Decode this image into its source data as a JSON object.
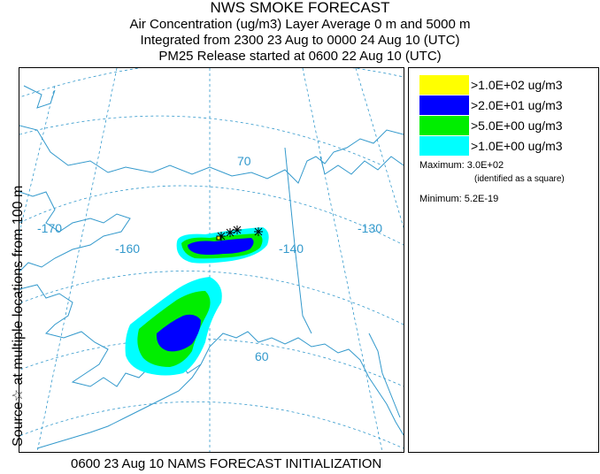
{
  "header": {
    "title": "NWS SMOKE FORECAST",
    "line2": "Air Concentration (ug/m3) Layer Average    0 m and  5000 m",
    "line3": "Integrated from 2300 23 Aug to 0000 24 Aug 10 (UTC)",
    "line4": "PM25 Release started at 0600 22 Aug 10 (UTC)"
  },
  "side_label": "Source☆ at multiple locations   from   100 m",
  "footer": "0600 23 Aug 10 NAMS FORECAST INITIALIZATION",
  "map": {
    "longitude_labels": [
      "-170",
      "-160",
      "-140",
      "-130"
    ],
    "latitude_labels": [
      "70",
      "60"
    ]
  },
  "legend": {
    "items": [
      {
        "label": ">1.0E+02 ug/m3",
        "color": "#ffff00"
      },
      {
        "label": ">2.0E+01 ug/m3",
        "color": "#0000ff"
      },
      {
        "label": ">5.0E+00 ug/m3",
        "color": "#00ee00"
      },
      {
        "label": ">1.0E+00 ug/m3",
        "color": "#00ffff"
      }
    ],
    "maximum": "Maximum: 3.0E+02",
    "maximum_note": "(identified as a square)",
    "minimum": "Minimum: 5.2E-19"
  },
  "colors": {
    "graticule": "#3399cc",
    "coast": "#3399cc",
    "marker": "#000000"
  }
}
